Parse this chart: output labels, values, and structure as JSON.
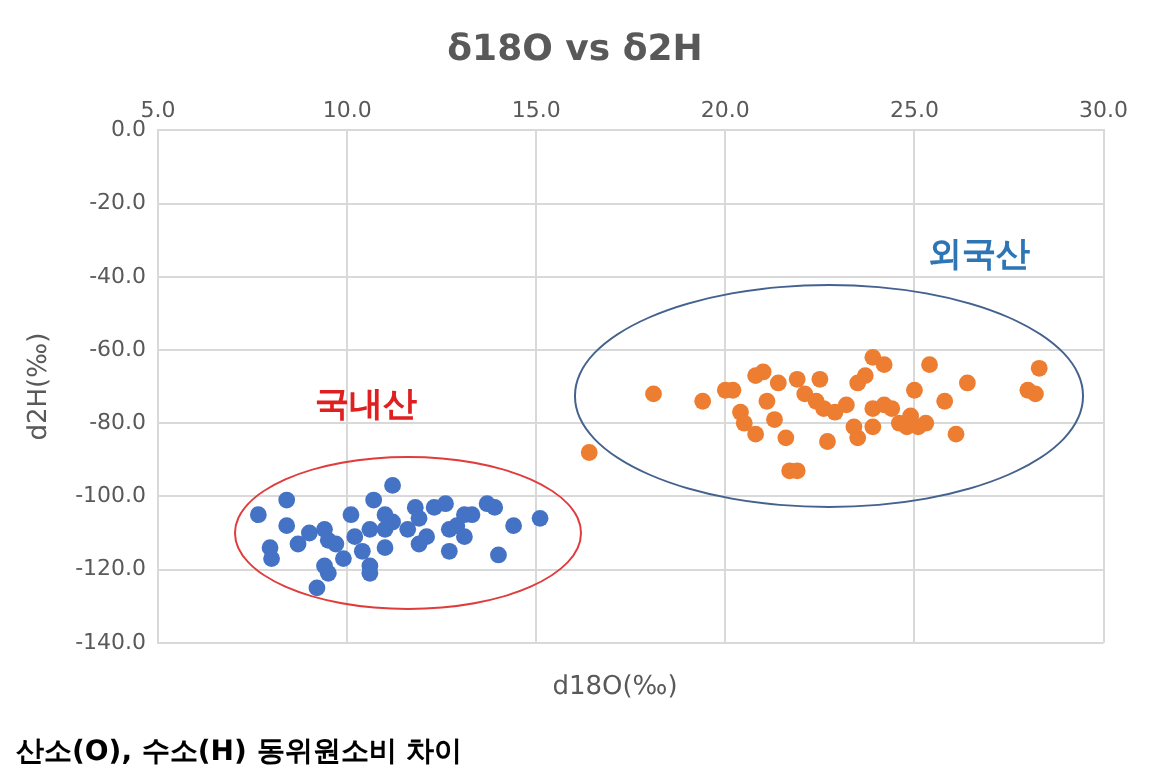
{
  "chart_data": {
    "type": "scatter",
    "title": "δ18O vs δ2H",
    "xlabel": "d18O(‰)",
    "ylabel": "d2H(‰)",
    "xlim": [
      5,
      30
    ],
    "xticks": [
      {
        "value": 5,
        "label": "5.0"
      },
      {
        "value": 10,
        "label": "10.0"
      },
      {
        "value": 15,
        "label": "15.0"
      },
      {
        "value": 20,
        "label": "20.0"
      },
      {
        "value": 25,
        "label": "25.0"
      },
      {
        "value": 30,
        "label": "30.0"
      }
    ],
    "ylim": [
      -140,
      0
    ],
    "yticks": [
      {
        "value": 0,
        "label": "0.0"
      },
      {
        "value": -20,
        "label": "-20.0"
      },
      {
        "value": -40,
        "label": "-40.0"
      },
      {
        "value": -60,
        "label": "-60.0"
      },
      {
        "value": -80,
        "label": "-80.0"
      },
      {
        "value": -100,
        "label": "-100.0"
      },
      {
        "value": -120,
        "label": "-120.0"
      },
      {
        "value": -140,
        "label": "-140.0"
      }
    ],
    "grid": true,
    "legend": false,
    "marker": "circle",
    "series": [
      {
        "color": "#4472c4",
        "x": [
          7.65,
          8.4,
          8.4,
          7.96,
          8.0,
          8.7,
          9.0,
          9.4,
          9.5,
          9.7,
          9.4,
          9.5,
          9.2,
          10.1,
          9.9,
          10.2,
          10.4,
          10.6,
          10.6,
          10.7,
          10.8,
          11.0,
          10.8,
          10.6,
          11.0,
          11.0,
          11.2,
          11.2,
          11.6,
          11.8,
          11.9,
          11.9,
          12.1,
          12.3,
          12.6,
          12.7,
          12.7,
          12.9,
          13.1,
          13.3,
          13.1,
          13.7,
          13.9,
          14.0,
          14.4,
          15.1
        ],
        "values": [
          -105,
          -101,
          -108,
          -114,
          -117,
          -113,
          -110,
          -109,
          -112,
          -113,
          -119,
          -121,
          -125,
          -105,
          -117,
          -111,
          -115,
          -119,
          -121,
          -101,
          null,
          -105,
          null,
          -109,
          -114,
          -109,
          -97,
          -107,
          -109,
          -103,
          -113,
          -106,
          -111,
          -103,
          -102,
          -109,
          -115,
          -108,
          -105,
          -105,
          -111,
          -102,
          -103,
          -116,
          -108,
          -106
        ]
      },
      {
        "color": "#ed7d31",
        "x": [
          16.4,
          18.1,
          19.4,
          20.0,
          20.2,
          20.4,
          20.5,
          20.8,
          20.8,
          21.0,
          21.1,
          21.3,
          21.4,
          21.6,
          21.7,
          21.9,
          21.9,
          22.1,
          22.5,
          22.4,
          22.7,
          22.6,
          22.9,
          23.2,
          23.4,
          23.5,
          23.5,
          23.7,
          23.9,
          24.2,
          23.9,
          23.9,
          24.2,
          24.4,
          24.6,
          24.8,
          24.9,
          25.0,
          25.1,
          25.3,
          25.4,
          25.8,
          26.1,
          26.4,
          28.0,
          28.2,
          28.3
        ],
        "values": [
          -88,
          -72,
          -74,
          -71,
          -71,
          -77,
          -80,
          -83,
          -67,
          -66,
          -74,
          -79,
          -69,
          -84,
          -93,
          -93,
          -68,
          -72,
          -68,
          -74,
          -85,
          -76,
          -77,
          -75,
          -81,
          -84,
          -69,
          -67,
          -62,
          -64,
          -76,
          -81,
          -75,
          -76,
          -80,
          -81,
          -78,
          -71,
          -81,
          -80,
          -64,
          -74,
          -83,
          -69,
          -71,
          -72,
          -65
        ]
      }
    ],
    "annotations": [
      "국내산",
      "외국산",
      "산소(O), 수소(H) 동위원소비 차이"
    ]
  }
}
